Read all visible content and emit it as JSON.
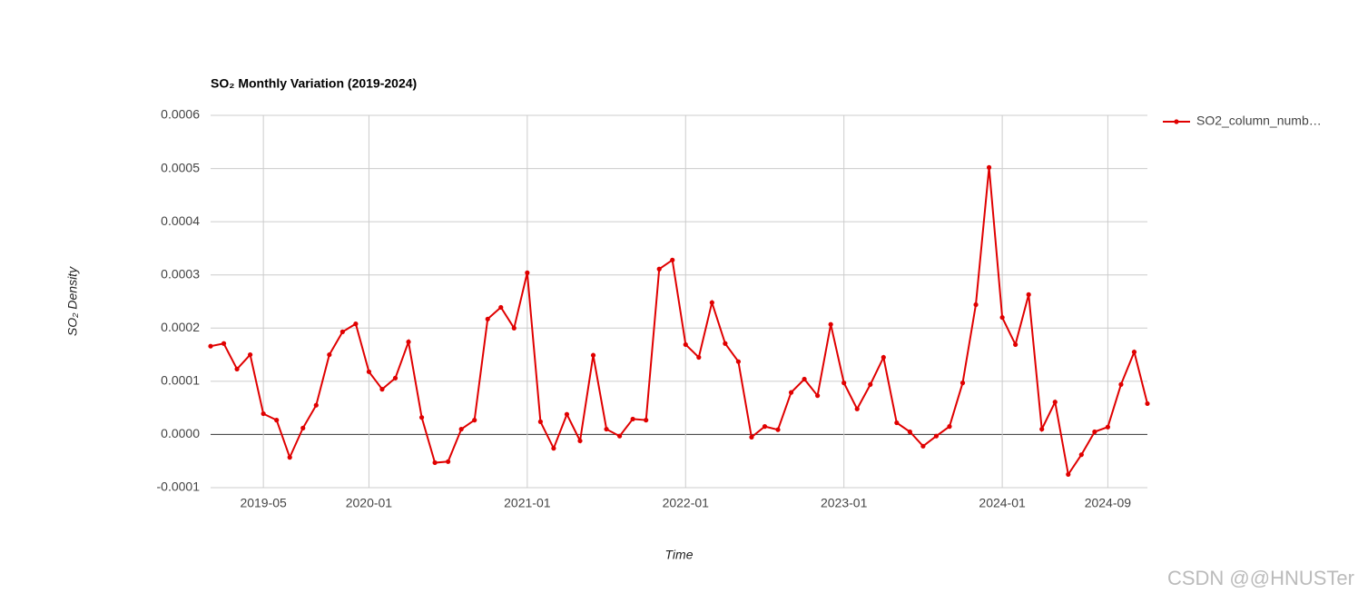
{
  "chart_data": {
    "type": "line",
    "title": "SO₂ Monthly Variation (2019-2024)",
    "x_label": "Time",
    "y_label": "SO₂ Density",
    "watermark": "CSDN @@HNUSTer",
    "x": [
      "2019-01",
      "2019-02",
      "2019-03",
      "2019-04",
      "2019-05",
      "2019-06",
      "2019-07",
      "2019-08",
      "2019-09",
      "2019-10",
      "2019-11",
      "2019-12",
      "2020-01",
      "2020-02",
      "2020-03",
      "2020-04",
      "2020-05",
      "2020-06",
      "2020-07",
      "2020-08",
      "2020-09",
      "2020-10",
      "2020-11",
      "2020-12",
      "2021-01",
      "2021-02",
      "2021-03",
      "2021-04",
      "2021-05",
      "2021-06",
      "2021-07",
      "2021-08",
      "2021-09",
      "2021-10",
      "2021-11",
      "2021-12",
      "2022-01",
      "2022-02",
      "2022-03",
      "2022-04",
      "2022-05",
      "2022-06",
      "2022-07",
      "2022-08",
      "2022-09",
      "2022-10",
      "2022-11",
      "2022-12",
      "2023-01",
      "2023-02",
      "2023-03",
      "2023-04",
      "2023-05",
      "2023-06",
      "2023-07",
      "2023-08",
      "2023-09",
      "2023-10",
      "2023-11",
      "2023-12",
      "2024-01",
      "2024-02",
      "2024-03",
      "2024-04",
      "2024-05",
      "2024-06",
      "2024-07",
      "2024-08",
      "2024-09",
      "2024-10",
      "2024-11",
      "2024-12"
    ],
    "series": [
      {
        "name": "SO2_column_numb…",
        "color": "#e00000",
        "values": [
          0.000166,
          0.000171,
          0.000123,
          0.00015,
          3.9e-05,
          2.7e-05,
          -4.3e-05,
          1.2e-05,
          5.5e-05,
          0.00015,
          0.000193,
          0.000208,
          0.000118,
          8.5e-05,
          0.000106,
          0.000174,
          3.2e-05,
          -5.3e-05,
          -5.1e-05,
          1e-05,
          2.7e-05,
          0.000217,
          0.000239,
          0.0002,
          0.000304,
          2.4e-05,
          -2.6e-05,
          3.8e-05,
          -1.2e-05,
          0.000149,
          1e-05,
          -3e-06,
          2.9e-05,
          2.7e-05,
          0.000311,
          0.000328,
          0.000169,
          0.000145,
          0.000248,
          0.000171,
          0.000137,
          -5e-06,
          1.5e-05,
          9e-06,
          7.9e-05,
          0.000104,
          7.3e-05,
          0.000207,
          9.7e-05,
          4.8e-05,
          9.4e-05,
          0.000145,
          2.2e-05,
          5e-06,
          -2.2e-05,
          -3e-06,
          1.5e-05,
          9.7e-05,
          0.000244,
          0.000502,
          0.00022,
          0.000169,
          0.000263,
          1e-05,
          6.1e-05,
          -7.5e-05,
          -3.8e-05,
          5e-06,
          1.4e-05,
          9.4e-05,
          0.000155,
          5.8e-05
        ]
      }
    ],
    "xlim": [
      "2019-01",
      "2024-12"
    ],
    "xticks": [
      "2019-05",
      "2020-01",
      "2021-01",
      "2022-01",
      "2023-01",
      "2024-01",
      "2024-09"
    ],
    "ylim": [
      -0.0001,
      0.0006
    ],
    "yticks": [
      -0.0001,
      {
        "value": 0,
        "label": "0.0000"
      },
      0.0001,
      0.0002,
      0.0003,
      0.0004,
      0.0005,
      0.0006
    ],
    "grid": true,
    "legend": "right"
  }
}
